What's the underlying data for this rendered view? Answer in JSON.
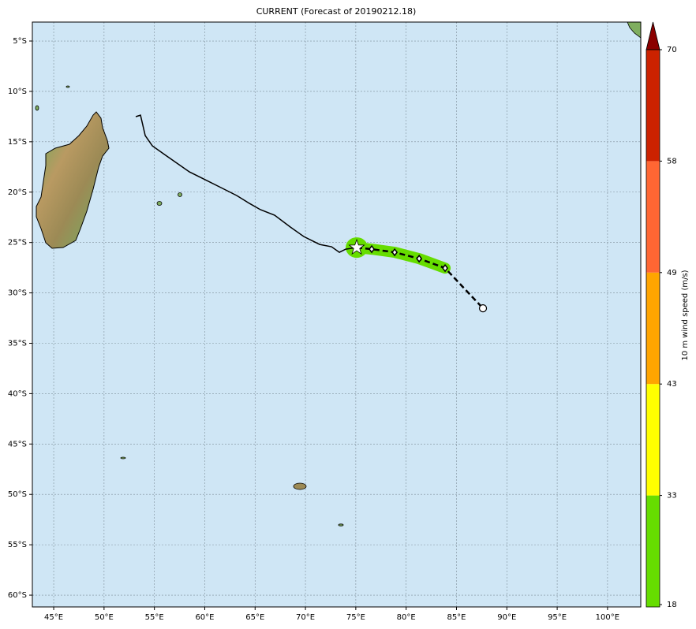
{
  "map": {
    "title": "CURRENT (Forecast of 20190212.18)",
    "xlim": [
      42.88,
      103.3
    ],
    "ylim": [
      -61.17,
      -3.12
    ],
    "xticks": [
      {
        "value": 45,
        "label": "45°E"
      },
      {
        "value": 50,
        "label": "50°E"
      },
      {
        "value": 55,
        "label": "55°E"
      },
      {
        "value": 60,
        "label": "60°E"
      },
      {
        "value": 65,
        "label": "65°E"
      },
      {
        "value": 70,
        "label": "70°E"
      },
      {
        "value": 75,
        "label": "75°E"
      },
      {
        "value": 80,
        "label": "80°E"
      },
      {
        "value": 85,
        "label": "85°E"
      },
      {
        "value": 90,
        "label": "90°E"
      },
      {
        "value": 95,
        "label": "95°E"
      },
      {
        "value": 100,
        "label": "100°E"
      }
    ],
    "yticks": [
      {
        "value": -5,
        "label": "5°S"
      },
      {
        "value": -10,
        "label": "10°S"
      },
      {
        "value": -15,
        "label": "15°S"
      },
      {
        "value": -20,
        "label": "20°S"
      },
      {
        "value": -25,
        "label": "25°S"
      },
      {
        "value": -30,
        "label": "30°S"
      },
      {
        "value": -35,
        "label": "35°S"
      },
      {
        "value": -40,
        "label": "40°S"
      },
      {
        "value": -45,
        "label": "45°S"
      },
      {
        "value": -50,
        "label": "50°S"
      },
      {
        "value": -55,
        "label": "55°S"
      },
      {
        "value": -60,
        "label": "60°S"
      }
    ],
    "grid": true,
    "track": {
      "color": "#000000",
      "lon": [
        53.15,
        53.62,
        54.09,
        54.8,
        56.13,
        58.48,
        61.61,
        63.18,
        64.44,
        65.53,
        66.94,
        68.51,
        69.84,
        71.41,
        72.59,
        73.37,
        74.0,
        75.09
      ],
      "lat": [
        -12.51,
        -12.36,
        -14.39,
        -15.41,
        -16.35,
        -17.99,
        -19.55,
        -20.34,
        -21.12,
        -21.74,
        -22.29,
        -23.47,
        -24.41,
        -25.19,
        -25.42,
        -25.97,
        -25.66,
        -25.5
      ]
    },
    "forecast": {
      "color": "#000000",
      "swath_color": "#66dd00",
      "lon": [
        75.09,
        76.58,
        78.86,
        81.29,
        83.87,
        87.63
      ],
      "lat": [
        -25.5,
        -25.66,
        -25.97,
        -26.6,
        -27.54,
        -31.53
      ]
    },
    "colorbar": {
      "label": "10 m wind speed (m/s)",
      "ticks": [
        18,
        33,
        43,
        49,
        58,
        70
      ],
      "colors": [
        "#66dd00",
        "#ffff00",
        "#ffa500",
        "#ff6633",
        "#cc2200"
      ],
      "extend_color": "#8b0000"
    }
  }
}
